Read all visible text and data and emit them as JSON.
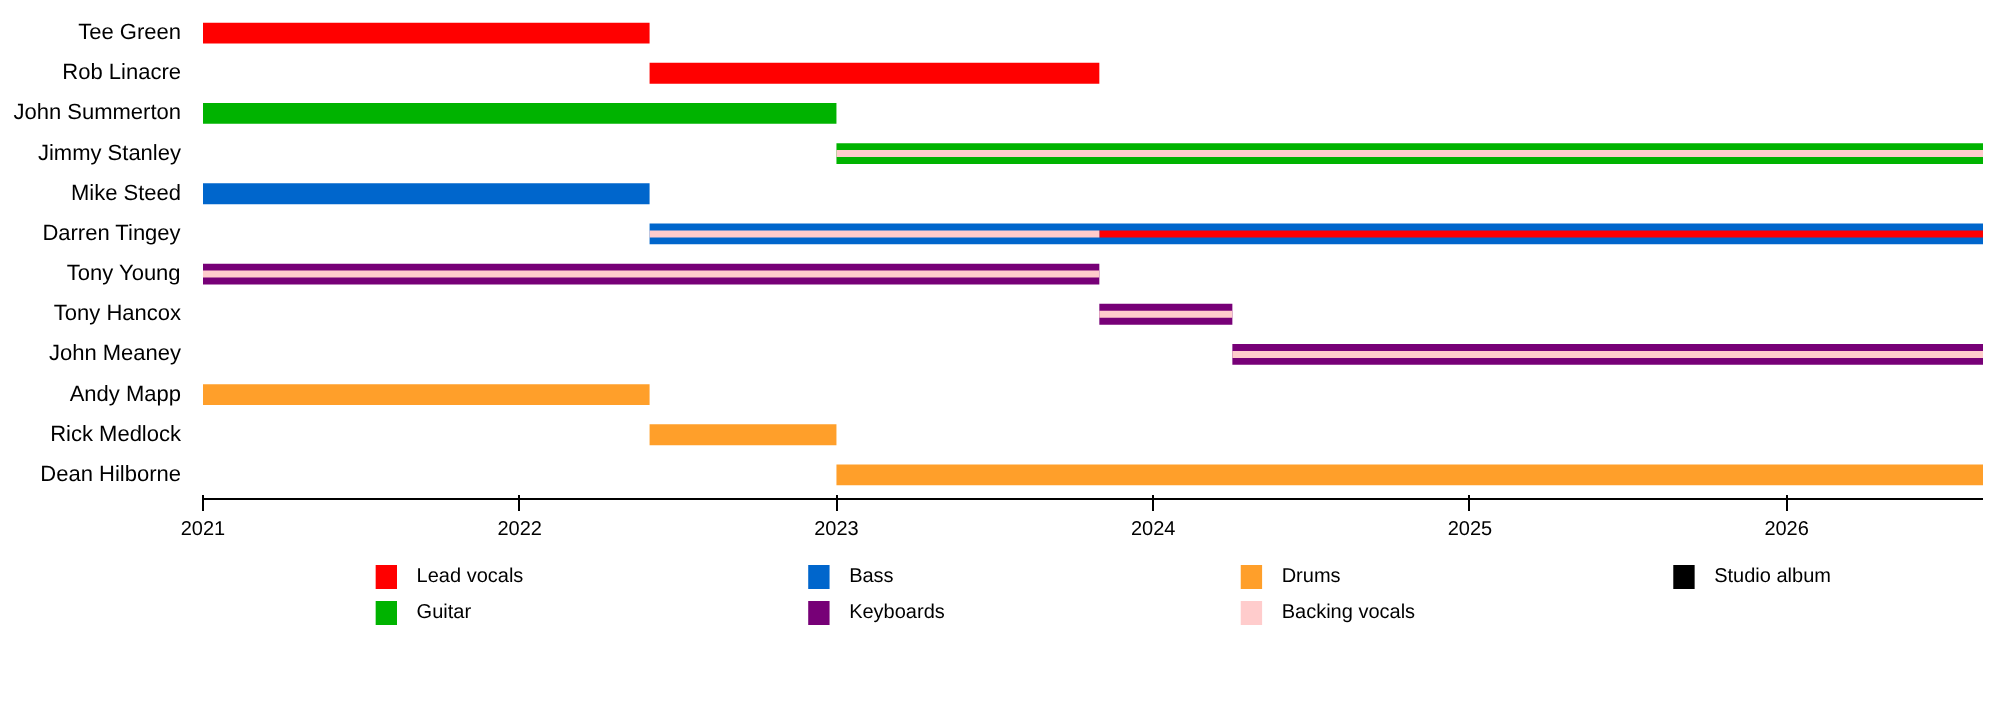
{
  "chart_data": {
    "type": "bar",
    "orientation": "horizontal",
    "grid": false,
    "legend": "bottom",
    "categories": [
      "Tee Green",
      "Rob Linacre",
      "John Summerton",
      "Jimmy Stanley",
      "Mike Steed",
      "Darren Tingey",
      "Tony Young",
      "Tony Hancox",
      "John Meaney",
      "Andy Mapp",
      "Rick Medlock",
      "Dean Hilborne"
    ],
    "xlim": [
      2021,
      2026.62
    ],
    "xticks": [
      2021,
      2022,
      2023,
      2024,
      2025,
      2026
    ],
    "series": [
      {
        "name": "Lead vocals",
        "color": "#ff0000",
        "values": [
          1.41,
          1.42,
          null,
          null,
          null,
          2.79,
          null,
          null,
          null,
          null,
          null,
          null
        ],
        "base": [
          2021,
          2022.41,
          null,
          null,
          null,
          2023.83,
          null,
          null,
          null,
          null,
          null,
          null
        ]
      },
      {
        "name": "Guitar",
        "color": "#00b300",
        "values": [
          null,
          null,
          2.0,
          3.62,
          null,
          null,
          null,
          null,
          null,
          null,
          null,
          null
        ],
        "base": [
          null,
          null,
          2021,
          2023,
          null,
          null,
          null,
          null,
          null,
          null,
          null,
          null
        ]
      },
      {
        "name": "Bass",
        "color": "#0066cc",
        "values": [
          null,
          null,
          null,
          null,
          1.41,
          4.21,
          null,
          null,
          null,
          null,
          null,
          null
        ],
        "base": [
          null,
          null,
          null,
          null,
          2021,
          2022.41,
          null,
          null,
          null,
          null,
          null,
          null
        ]
      },
      {
        "name": "Keyboards",
        "color": "#770077",
        "values": [
          null,
          null,
          null,
          null,
          null,
          null,
          2.83,
          0.42,
          2.37,
          null,
          null,
          null
        ],
        "base": [
          null,
          null,
          null,
          null,
          null,
          null,
          2021,
          2023.83,
          2024.25,
          null,
          null,
          null
        ]
      },
      {
        "name": "Drums",
        "color": "#ff9f2a",
        "values": [
          null,
          null,
          null,
          null,
          null,
          null,
          null,
          null,
          null,
          1.41,
          0.59,
          3.62
        ],
        "base": [
          null,
          null,
          null,
          null,
          null,
          null,
          null,
          null,
          null,
          2021,
          2022.41,
          2023
        ]
      },
      {
        "name": "Backing vocals",
        "color": "#ffcccc",
        "values": [
          null,
          null,
          null,
          3.62,
          null,
          1.42,
          2.83,
          0.42,
          2.37,
          null,
          null,
          null
        ],
        "base": [
          null,
          null,
          null,
          2023,
          null,
          2022.41,
          2021,
          2023.83,
          2024.25,
          null,
          null,
          null
        ]
      },
      {
        "name": "Studio album",
        "color": "#000000",
        "values": [
          null,
          null,
          null,
          null,
          null,
          null,
          null,
          null,
          null,
          null,
          null,
          null
        ],
        "base": [
          null,
          null,
          null,
          null,
          null,
          null,
          null,
          null,
          null,
          null,
          null,
          null
        ]
      }
    ]
  }
}
